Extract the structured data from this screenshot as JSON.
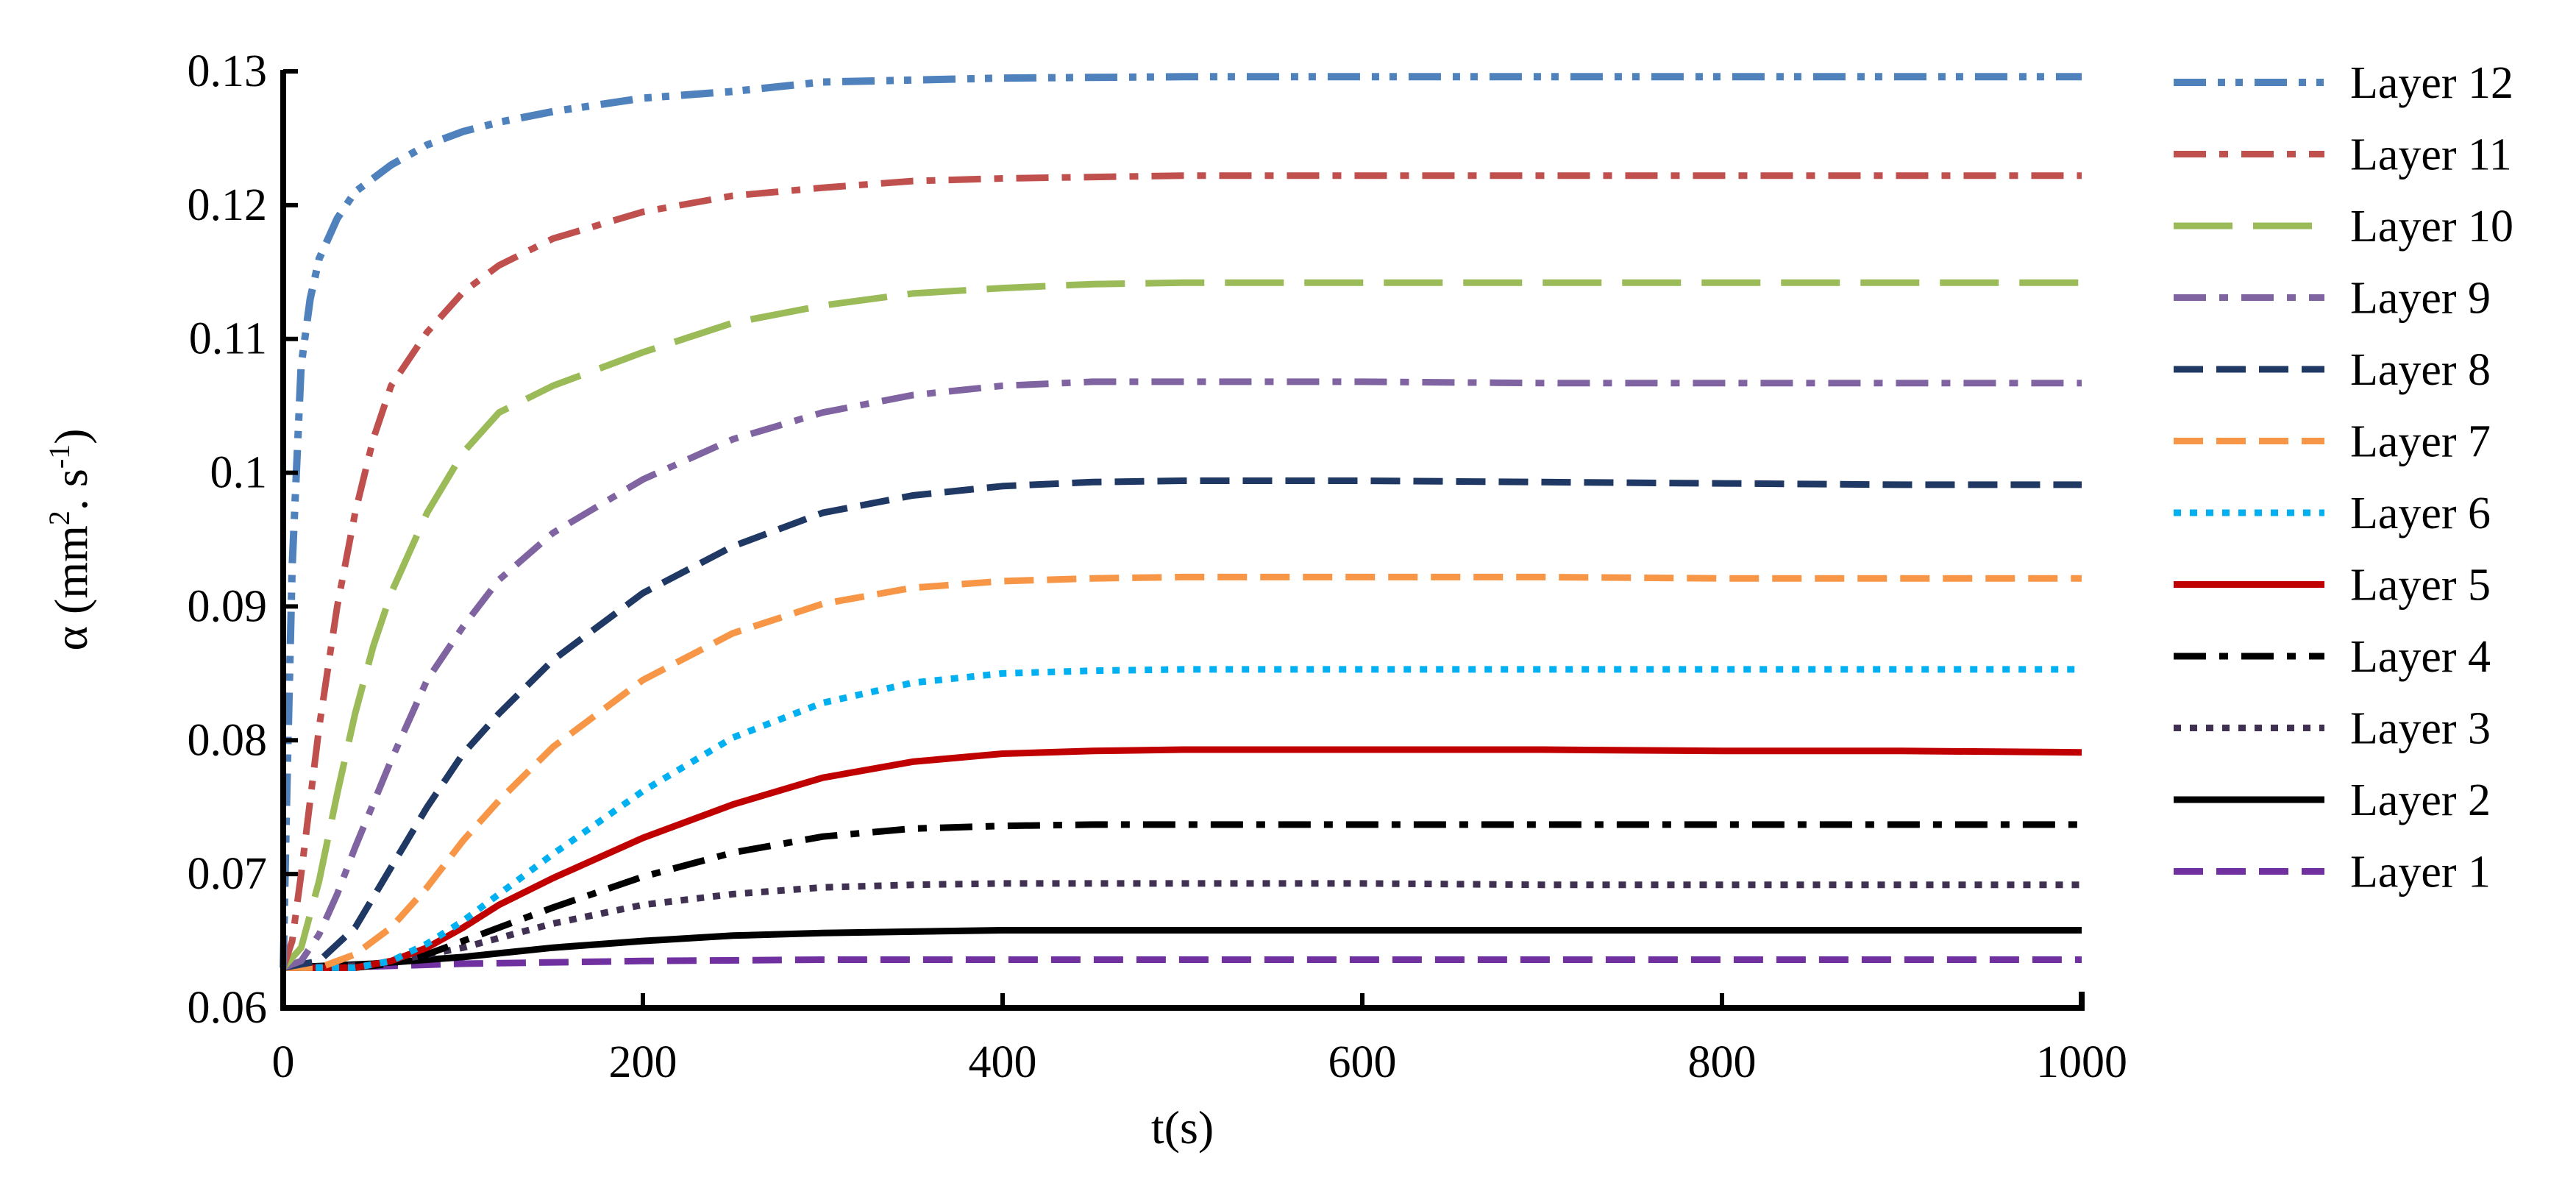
{
  "chart_data": {
    "type": "line",
    "title": "",
    "xlabel": "t(s)",
    "ylabel_main": "α (mm",
    "ylabel_sup1": "2",
    "ylabel_mid": ". s",
    "ylabel_sup2": "-1",
    "ylabel_end": ")",
    "xlim": [
      0,
      1000
    ],
    "ylim": [
      0.06,
      0.13
    ],
    "xticks": [
      0,
      200,
      400,
      600,
      800,
      1000
    ],
    "xtick_labels": [
      "0",
      "200",
      "400",
      "600",
      "800",
      "1000"
    ],
    "yticks": [
      0.06,
      0.07,
      0.08,
      0.09,
      0.1,
      0.11,
      0.12,
      0.13
    ],
    "ytick_labels": [
      "0.06",
      "0.07",
      "0.08",
      "0.09",
      "0.1",
      "0.11",
      "0.12",
      "0.13"
    ],
    "grid": false,
    "legend_position": "right",
    "series": [
      {
        "name": "Layer 12",
        "color": "#4f81bd",
        "style": "dash-dot-dot",
        "x": [
          0,
          2,
          5,
          10,
          15,
          20,
          30,
          40,
          50,
          60,
          80,
          100,
          120,
          150,
          200,
          250,
          300,
          400,
          500,
          600,
          700,
          800,
          900,
          1000
        ],
        "y": [
          0.063,
          0.076,
          0.093,
          0.108,
          0.113,
          0.116,
          0.119,
          0.121,
          0.122,
          0.123,
          0.1245,
          0.1255,
          0.1262,
          0.127,
          0.128,
          0.1285,
          0.1292,
          0.1295,
          0.1296,
          0.1296,
          0.1296,
          0.1296,
          0.1296,
          0.1296
        ]
      },
      {
        "name": "Layer 11",
        "color": "#c0504d",
        "style": "dash-dot",
        "x": [
          0,
          5,
          10,
          20,
          30,
          40,
          50,
          60,
          80,
          100,
          120,
          150,
          200,
          250,
          300,
          350,
          400,
          500,
          600,
          700,
          800,
          900,
          1000
        ],
        "y": [
          0.063,
          0.065,
          0.07,
          0.081,
          0.09,
          0.097,
          0.1025,
          0.1065,
          0.1105,
          0.1135,
          0.1155,
          0.1175,
          0.1195,
          0.1207,
          0.1213,
          0.1218,
          0.122,
          0.1222,
          0.1222,
          0.1222,
          0.1222,
          0.1222,
          0.1222
        ]
      },
      {
        "name": "Layer 10",
        "color": "#9bbb59",
        "style": "long-dash",
        "x": [
          0,
          10,
          20,
          30,
          40,
          50,
          60,
          80,
          100,
          120,
          150,
          200,
          250,
          300,
          350,
          400,
          450,
          500,
          600,
          700,
          800,
          900,
          1000
        ],
        "y": [
          0.063,
          0.0645,
          0.0695,
          0.076,
          0.082,
          0.087,
          0.091,
          0.097,
          0.1015,
          0.1045,
          0.1065,
          0.109,
          0.1112,
          0.1125,
          0.1134,
          0.1138,
          0.1141,
          0.1142,
          0.1142,
          0.1142,
          0.1142,
          0.1142,
          0.1142
        ]
      },
      {
        "name": "Layer 9",
        "color": "#8064a2",
        "style": "dash-dot",
        "x": [
          0,
          10,
          20,
          30,
          40,
          60,
          80,
          100,
          120,
          150,
          200,
          250,
          300,
          350,
          400,
          450,
          500,
          600,
          700,
          800,
          900,
          1000
        ],
        "y": [
          0.063,
          0.0635,
          0.0655,
          0.0685,
          0.072,
          0.0785,
          0.0845,
          0.0885,
          0.092,
          0.0955,
          0.0995,
          0.1025,
          0.1045,
          0.1058,
          0.1065,
          0.1068,
          0.1068,
          0.1068,
          0.1067,
          0.1067,
          0.1067,
          0.1067
        ]
      },
      {
        "name": "Layer 8",
        "color": "#1f3864",
        "style": "dash",
        "x": [
          0,
          20,
          40,
          60,
          80,
          100,
          120,
          150,
          200,
          250,
          300,
          350,
          400,
          450,
          500,
          600,
          700,
          800,
          900,
          1000
        ],
        "y": [
          0.063,
          0.0635,
          0.066,
          0.0705,
          0.075,
          0.079,
          0.082,
          0.086,
          0.091,
          0.0945,
          0.097,
          0.0983,
          0.099,
          0.0993,
          0.0994,
          0.0994,
          0.0993,
          0.0992,
          0.0991,
          0.0991
        ]
      },
      {
        "name": "Layer 7",
        "color": "#f79646",
        "style": "dash",
        "x": [
          0,
          20,
          40,
          60,
          80,
          100,
          120,
          150,
          200,
          250,
          300,
          350,
          400,
          450,
          500,
          600,
          700,
          800,
          900,
          1000
        ],
        "y": [
          0.063,
          0.063,
          0.064,
          0.066,
          0.069,
          0.0725,
          0.0755,
          0.0795,
          0.0845,
          0.088,
          0.0902,
          0.0914,
          0.0919,
          0.0921,
          0.0922,
          0.0922,
          0.0922,
          0.0921,
          0.0921,
          0.0921
        ]
      },
      {
        "name": "Layer 6",
        "color": "#00b0f0",
        "style": "dot",
        "x": [
          0,
          40,
          60,
          80,
          100,
          120,
          150,
          200,
          250,
          300,
          350,
          400,
          450,
          500,
          600,
          700,
          800,
          900,
          1000
        ],
        "y": [
          0.063,
          0.063,
          0.0635,
          0.0648,
          0.0665,
          0.0685,
          0.0715,
          0.0762,
          0.0802,
          0.0828,
          0.0843,
          0.085,
          0.0852,
          0.0853,
          0.0853,
          0.0853,
          0.0853,
          0.0853,
          0.0853
        ]
      },
      {
        "name": "Layer 5",
        "color": "#c00000",
        "style": "solid",
        "x": [
          0,
          40,
          60,
          80,
          100,
          120,
          150,
          200,
          250,
          300,
          350,
          400,
          450,
          500,
          550,
          600,
          700,
          800,
          900,
          1000
        ],
        "y": [
          0.063,
          0.063,
          0.0635,
          0.0645,
          0.066,
          0.0677,
          0.0697,
          0.0727,
          0.0752,
          0.0772,
          0.0784,
          0.079,
          0.0792,
          0.0793,
          0.0793,
          0.0793,
          0.0793,
          0.0792,
          0.0792,
          0.0791
        ]
      },
      {
        "name": "Layer 4",
        "color": "#000000",
        "style": "dash-dot",
        "x": [
          0,
          40,
          60,
          80,
          100,
          150,
          200,
          250,
          300,
          350,
          400,
          450,
          500,
          600,
          700,
          800,
          900,
          1000
        ],
        "y": [
          0.063,
          0.063,
          0.0633,
          0.064,
          0.065,
          0.0675,
          0.0698,
          0.0716,
          0.0728,
          0.0734,
          0.0736,
          0.0737,
          0.0737,
          0.0737,
          0.0737,
          0.0737,
          0.0737,
          0.0737
        ]
      },
      {
        "name": "Layer 3",
        "color": "#403152",
        "style": "dot",
        "x": [
          0,
          50,
          100,
          150,
          200,
          250,
          300,
          350,
          400,
          500,
          600,
          700,
          800,
          900,
          1000
        ],
        "y": [
          0.063,
          0.0632,
          0.0645,
          0.0663,
          0.0677,
          0.0685,
          0.069,
          0.0692,
          0.0693,
          0.0693,
          0.0693,
          0.0692,
          0.0692,
          0.0692,
          0.0692
        ]
      },
      {
        "name": "Layer 2",
        "color": "#000000",
        "style": "solid",
        "x": [
          0,
          50,
          100,
          150,
          200,
          250,
          300,
          400,
          500,
          600,
          700,
          800,
          900,
          1000
        ],
        "y": [
          0.063,
          0.0633,
          0.0638,
          0.0645,
          0.065,
          0.0654,
          0.0656,
          0.0658,
          0.0658,
          0.0658,
          0.0658,
          0.0658,
          0.0658,
          0.0658
        ]
      },
      {
        "name": "Layer 1",
        "color": "#7030a0",
        "style": "dash",
        "x": [
          0,
          50,
          100,
          200,
          300,
          400,
          500,
          600,
          700,
          800,
          900,
          1000
        ],
        "y": [
          0.063,
          0.0631,
          0.0633,
          0.0635,
          0.0636,
          0.0636,
          0.0636,
          0.0636,
          0.0636,
          0.0636,
          0.0636,
          0.0636
        ]
      }
    ]
  }
}
